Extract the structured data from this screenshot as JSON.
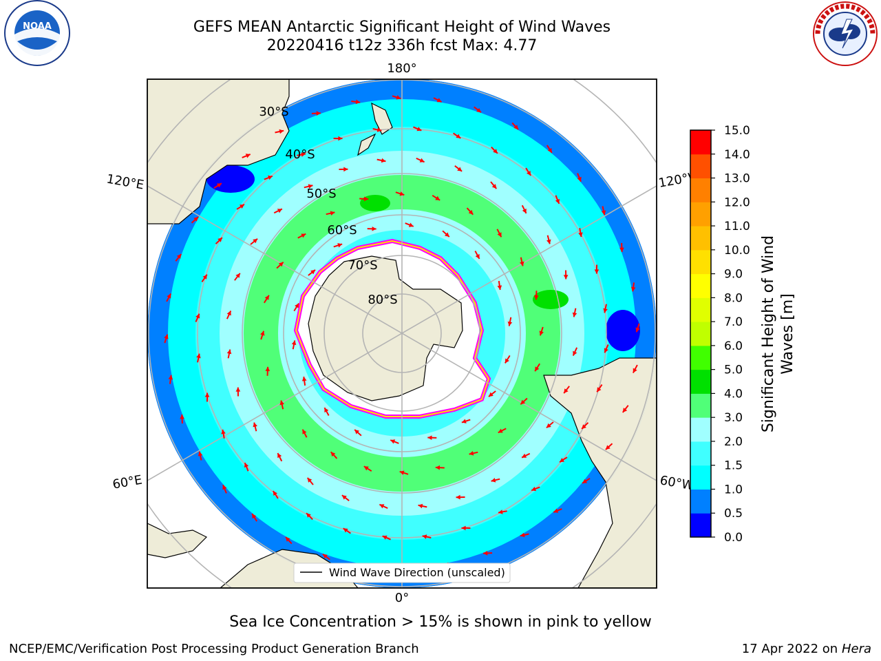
{
  "title": {
    "line1": "GEFS MEAN Antarctic Significant Height of Wind Waves",
    "line2": "20220416 t12z 336h fcst   Max: 4.77"
  },
  "logos": {
    "left": {
      "text": "NOAA",
      "icon": "noaa-logo"
    },
    "right": {
      "icon": "nws-logo",
      "ring_text": "NATIONAL WEATHER SERVICE"
    }
  },
  "map": {
    "projection": "south-polar-stereographic",
    "longitude_labels": {
      "top": "180°",
      "bottom": "0°",
      "upper_left": "120°E",
      "upper_right": "120°W",
      "lower_left": "60°E",
      "lower_right": "60°W"
    },
    "latitude_labels": [
      "30°S",
      "40°S",
      "50°S",
      "60°S",
      "70°S",
      "80°S"
    ],
    "legend_label": "Wind Wave Direction (unscaled)",
    "colors": {
      "land": "#eeecd8",
      "grid": "#b4b4b4",
      "arrow": "#ff0000",
      "ice": "#ff00ff"
    }
  },
  "colorbar": {
    "label_line1": "Significant Height of Wind",
    "label_line2": "Waves [m]",
    "ticks": [
      "0.0",
      "0.5",
      "1.0",
      "1.5",
      "2.0",
      "3.0",
      "4.0",
      "5.0",
      "6.0",
      "7.0",
      "8.0",
      "9.0",
      "10.0",
      "11.0",
      "12.0",
      "13.0",
      "14.0",
      "15.0"
    ],
    "colors": [
      "#0000ff",
      "#0080ff",
      "#00ffff",
      "#40ffff",
      "#a0ffff",
      "#50ff78",
      "#00e000",
      "#40ff00",
      "#c0ff00",
      "#e0ff00",
      "#ffff00",
      "#ffe000",
      "#ffc000",
      "#ffa000",
      "#ff8000",
      "#ff5000",
      "#ff0000"
    ]
  },
  "footer": {
    "note": "Sea Ice Concentration > 15% is shown in pink to yellow",
    "left": "NCEP/EMC/Verification Post Processing Product Generation Branch",
    "right_prefix": "17 Apr 2022 on ",
    "right_machine": "Hera"
  }
}
